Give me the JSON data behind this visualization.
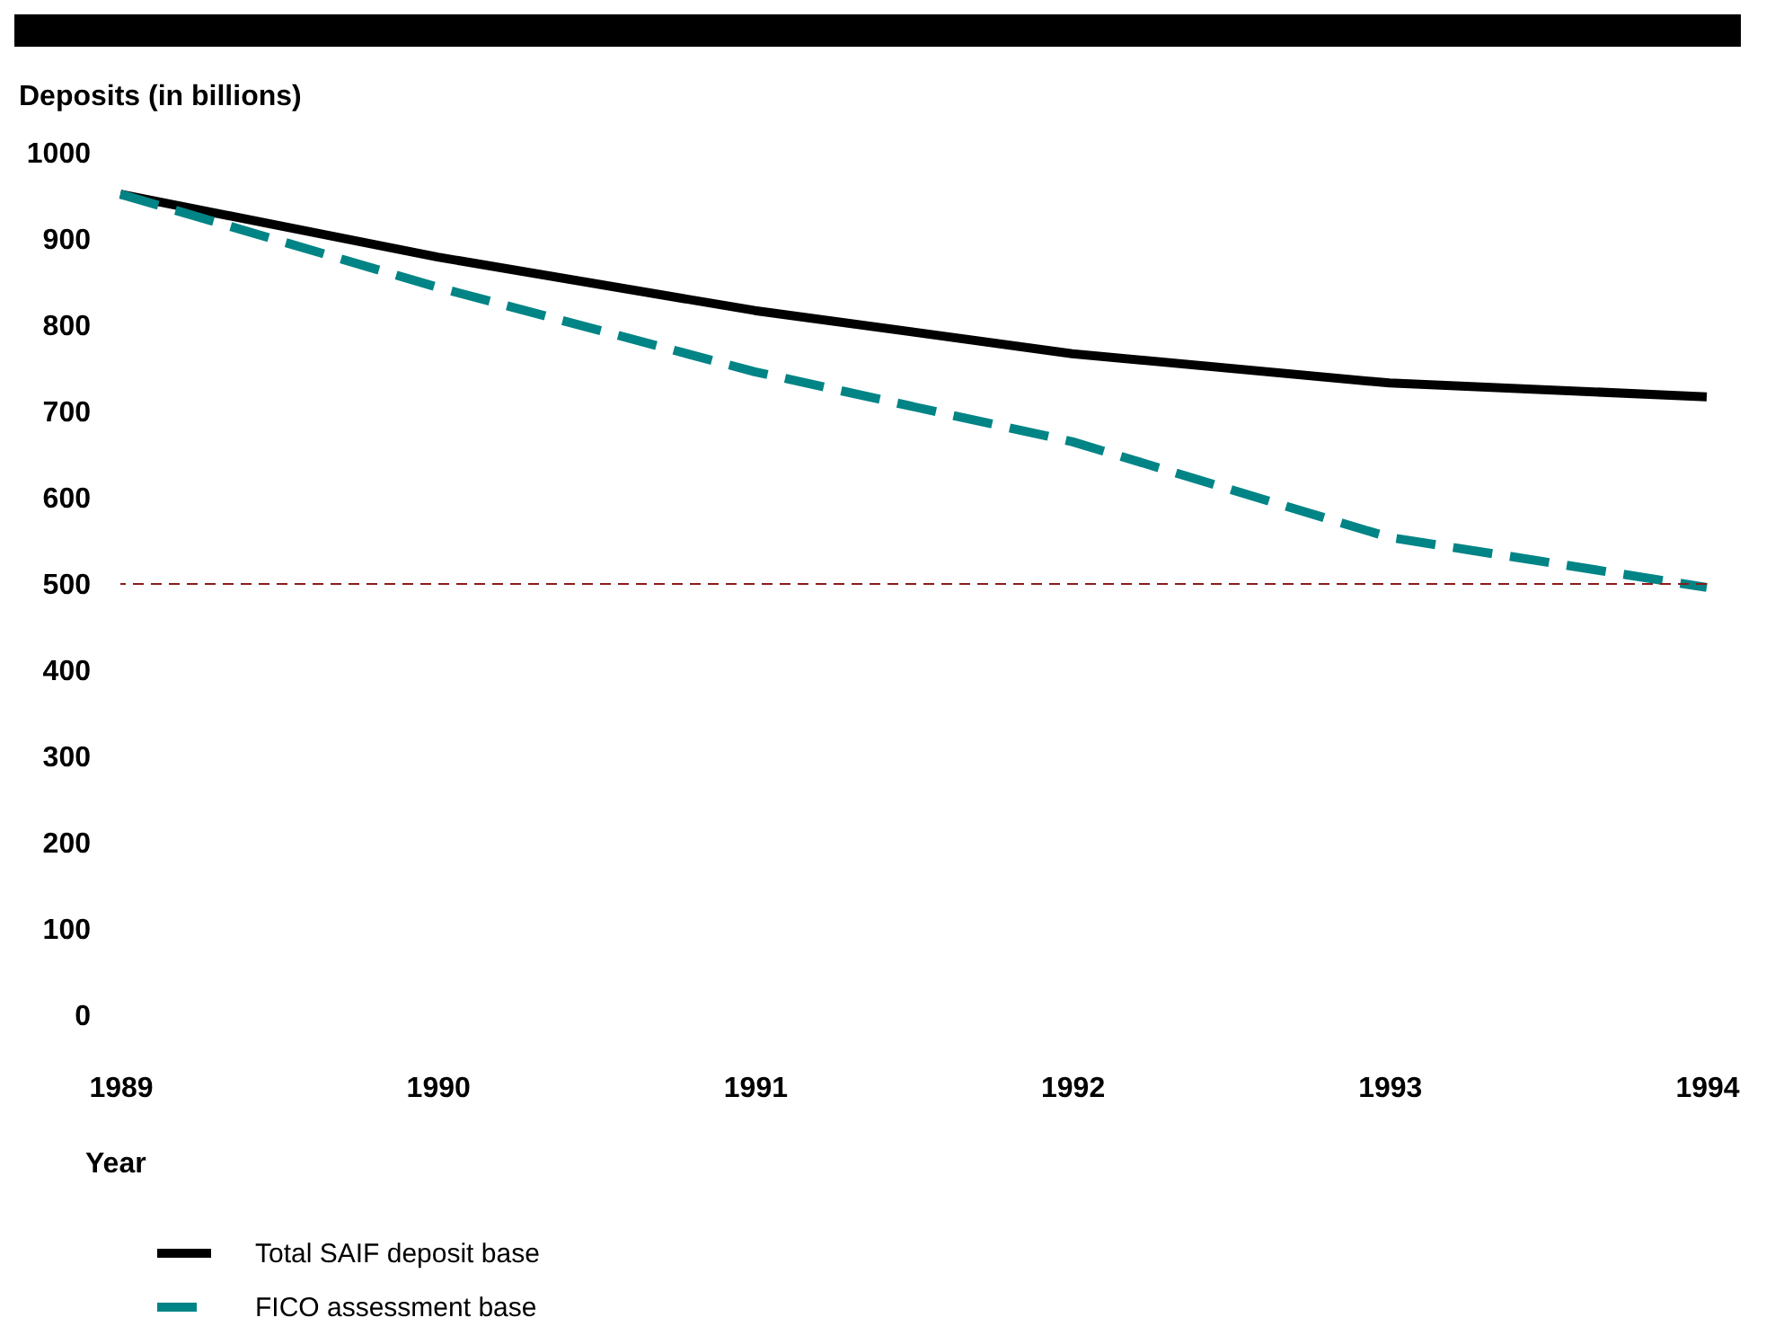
{
  "chart_data": {
    "type": "line",
    "xlabel": "Year",
    "ylabel": "Deposits (in billions)",
    "x": [
      1989,
      1990,
      1991,
      1992,
      1993,
      1994
    ],
    "series": [
      {
        "name": "Total SAIF deposit base",
        "color": "#000000",
        "line_style": "solid",
        "values": [
          952,
          879,
          817,
          767,
          733,
          717
        ]
      },
      {
        "name": "FICO assessment base",
        "color": "#008485",
        "line_style": "dashed",
        "values": [
          952,
          844,
          746,
          665,
          554,
          496
        ]
      }
    ],
    "xlim": [
      1989,
      1994
    ],
    "xticks": [
      1989,
      1990,
      1991,
      1992,
      1993,
      1994
    ],
    "ylim": [
      0,
      1000
    ],
    "yticks": [
      0,
      100,
      200,
      300,
      400,
      500,
      600,
      700,
      800,
      900,
      1000
    ],
    "ref_lines": [
      {
        "axis": "y",
        "value": 500,
        "color": "#8b1a1a",
        "line_style": "dashed"
      }
    ],
    "grid": false,
    "legend": "bottom left"
  }
}
